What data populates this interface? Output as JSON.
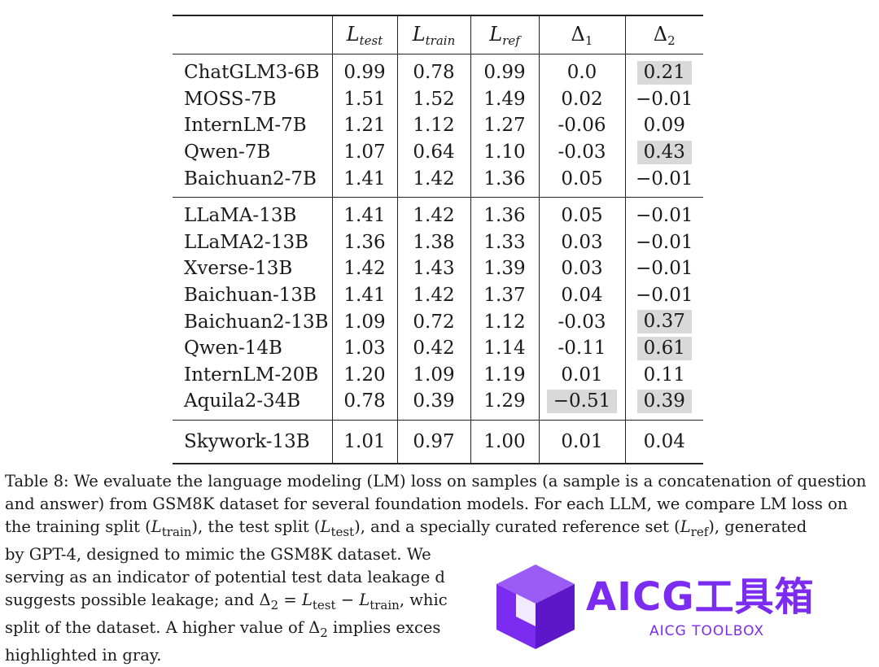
{
  "table": {
    "columns": [
      {
        "main": "L",
        "sub": "test"
      },
      {
        "main": "L",
        "sub": "train"
      },
      {
        "main": "L",
        "sub": "ref"
      },
      {
        "main": "Δ",
        "sub": "1"
      },
      {
        "main": "Δ",
        "sub": "2"
      }
    ],
    "groups": [
      [
        {
          "model": "ChatGLM3-6B",
          "values": [
            "0.99",
            "0.78",
            "0.99",
            "0.0",
            "0.21"
          ],
          "highlight": [
            false,
            false,
            false,
            false,
            true
          ]
        },
        {
          "model": "MOSS-7B",
          "values": [
            "1.51",
            "1.52",
            "1.49",
            "0.02",
            "−0.01"
          ],
          "highlight": [
            false,
            false,
            false,
            false,
            false
          ]
        },
        {
          "model": "InternLM-7B",
          "values": [
            "1.21",
            "1.12",
            "1.27",
            "-0.06",
            "0.09"
          ],
          "highlight": [
            false,
            false,
            false,
            false,
            false
          ]
        },
        {
          "model": "Qwen-7B",
          "values": [
            "1.07",
            "0.64",
            "1.10",
            "-0.03",
            "0.43"
          ],
          "highlight": [
            false,
            false,
            false,
            false,
            true
          ]
        },
        {
          "model": "Baichuan2-7B",
          "values": [
            "1.41",
            "1.42",
            "1.36",
            "0.05",
            "−0.01"
          ],
          "highlight": [
            false,
            false,
            false,
            false,
            false
          ]
        }
      ],
      [
        {
          "model": "LLaMA-13B",
          "values": [
            "1.41",
            "1.42",
            "1.36",
            "0.05",
            "−0.01"
          ],
          "highlight": [
            false,
            false,
            false,
            false,
            false
          ]
        },
        {
          "model": "LLaMA2-13B",
          "values": [
            "1.36",
            "1.38",
            "1.33",
            "0.03",
            "−0.01"
          ],
          "highlight": [
            false,
            false,
            false,
            false,
            false
          ]
        },
        {
          "model": "Xverse-13B",
          "values": [
            "1.42",
            "1.43",
            "1.39",
            "0.03",
            "−0.01"
          ],
          "highlight": [
            false,
            false,
            false,
            false,
            false
          ]
        },
        {
          "model": "Baichuan-13B",
          "values": [
            "1.41",
            "1.42",
            "1.37",
            "0.04",
            "−0.01"
          ],
          "highlight": [
            false,
            false,
            false,
            false,
            false
          ]
        },
        {
          "model": "Baichuan2-13B",
          "values": [
            "1.09",
            "0.72",
            "1.12",
            "-0.03",
            "0.37"
          ],
          "highlight": [
            false,
            false,
            false,
            false,
            true
          ]
        },
        {
          "model": "Qwen-14B",
          "values": [
            "1.03",
            "0.42",
            "1.14",
            "-0.11",
            "0.61"
          ],
          "highlight": [
            false,
            false,
            false,
            false,
            true
          ]
        },
        {
          "model": "InternLM-20B",
          "values": [
            "1.20",
            "1.09",
            "1.19",
            "0.01",
            "0.11"
          ],
          "highlight": [
            false,
            false,
            false,
            false,
            false
          ]
        },
        {
          "model": "Aquila2-34B",
          "values": [
            "0.78",
            "0.39",
            "1.29",
            "−0.51",
            "0.39"
          ],
          "highlight": [
            false,
            false,
            false,
            true,
            true
          ]
        }
      ],
      [
        {
          "model": "Skywork-13B",
          "values": [
            "1.01",
            "0.97",
            "1.00",
            "0.01",
            "0.04"
          ],
          "highlight": [
            false,
            false,
            false,
            false,
            false
          ]
        }
      ]
    ]
  },
  "caption": {
    "lines": [
      "Table 8: We evaluate the language modeling (LM) loss on samples (a sample is a concatenation of question",
      "and answer) from GSM8K dataset for several foundation models. For each LLM, we compare LM loss on",
      "the training split (L_train), the test split (L_test), and a specially curated reference set (L_ref), generated",
      "by GPT-4, designed to mimic the GSM8K dataset. We",
      "serving as an indicator of potential test data leakage d",
      "suggests possible leakage; and Δ2 = L_test − L_train, whic",
      "split of the dataset. A higher value of Δ2 implies exces",
      "highlighted in gray."
    ]
  },
  "watermark": {
    "title": "AICG工具箱",
    "subtitle": "AICG TOOLBOX",
    "color": "#7b2cf0"
  }
}
